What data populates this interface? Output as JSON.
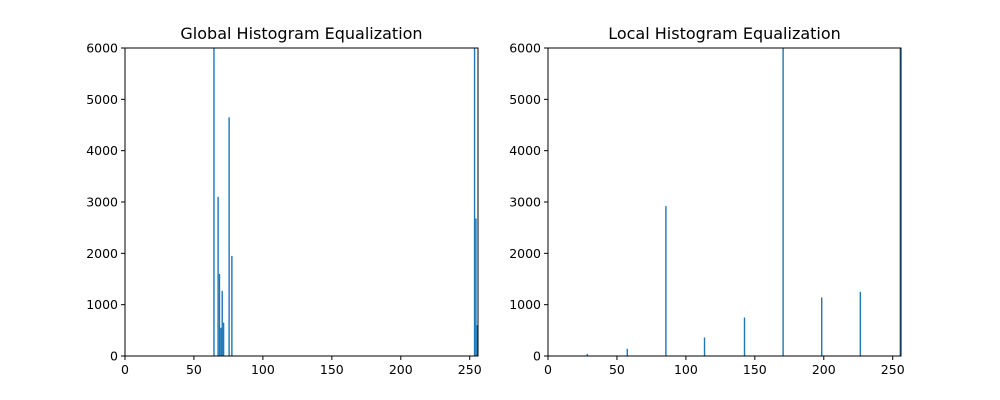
{
  "colors": {
    "bar": "#1f77b4",
    "axes": "#000000",
    "background": "#ffffff"
  },
  "chart_data": [
    {
      "type": "bar",
      "title": "Global Histogram Equalization",
      "xlabel": "",
      "ylabel": "",
      "xlim": [
        0,
        256
      ],
      "ylim": [
        0,
        6000
      ],
      "grid": false,
      "x_ticks": [
        0,
        50,
        100,
        150,
        200,
        250
      ],
      "y_ticks": [
        0,
        1000,
        2000,
        3000,
        4000,
        5000,
        6000
      ],
      "x": [
        64,
        67,
        68,
        69,
        70,
        71,
        75,
        77,
        253,
        254,
        255
      ],
      "values": [
        6000,
        3100,
        1600,
        550,
        1270,
        650,
        4650,
        1950,
        6000,
        2680,
        600
      ]
    },
    {
      "type": "bar",
      "title": "Local Histogram Equalization",
      "xlabel": "",
      "ylabel": "",
      "xlim": [
        0,
        256
      ],
      "ylim": [
        0,
        6000
      ],
      "grid": false,
      "x_ticks": [
        0,
        50,
        100,
        150,
        200,
        250
      ],
      "y_ticks": [
        0,
        1000,
        2000,
        3000,
        4000,
        5000,
        6000
      ],
      "x": [
        28,
        57,
        85,
        113,
        142,
        170,
        198,
        226,
        255
      ],
      "values": [
        40,
        140,
        2920,
        360,
        750,
        6000,
        1140,
        1250,
        6000
      ]
    }
  ]
}
